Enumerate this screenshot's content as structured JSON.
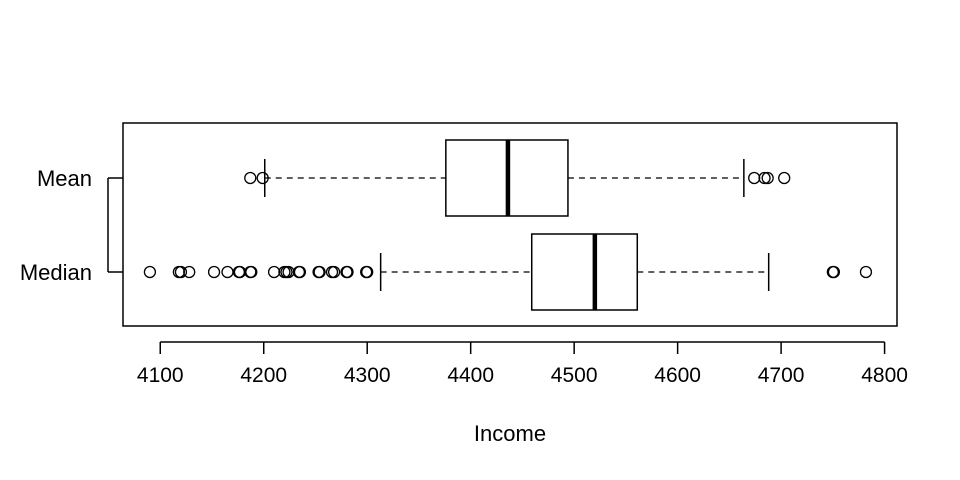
{
  "chart_data": {
    "type": "boxplot",
    "orientation": "horizontal",
    "title": "",
    "xlabel": "Income",
    "ylabel": "",
    "xlim": [
      4064,
      4812
    ],
    "xticks": [
      4100,
      4200,
      4300,
      4400,
      4500,
      4600,
      4700,
      4800
    ],
    "xtick_labels": [
      "4100",
      "4200",
      "4300",
      "4400",
      "4500",
      "4600",
      "4700",
      "4800"
    ],
    "categories": [
      "Mean",
      "Median"
    ],
    "grid": false,
    "legend": "none",
    "series": [
      {
        "name": "Mean",
        "whisker_low": 4201,
        "q1": 4376,
        "median": 4436,
        "q3": 4494,
        "whisker_high": 4664,
        "outliers": [
          4187,
          4199,
          4674,
          4684,
          4687,
          4703
        ]
      },
      {
        "name": "Median",
        "whisker_low": 4313,
        "q1": 4459,
        "median": 4520,
        "q3": 4561,
        "whisker_high": 4688,
        "outliers": [
          4090,
          4118,
          4120,
          4128,
          4152,
          4165,
          4176,
          4177,
          4187,
          4188,
          4210,
          4220,
          4222,
          4224,
          4234,
          4235,
          4253,
          4254,
          4266,
          4268,
          4280,
          4281,
          4299,
          4300,
          4750,
          4751,
          4782
        ]
      }
    ]
  }
}
